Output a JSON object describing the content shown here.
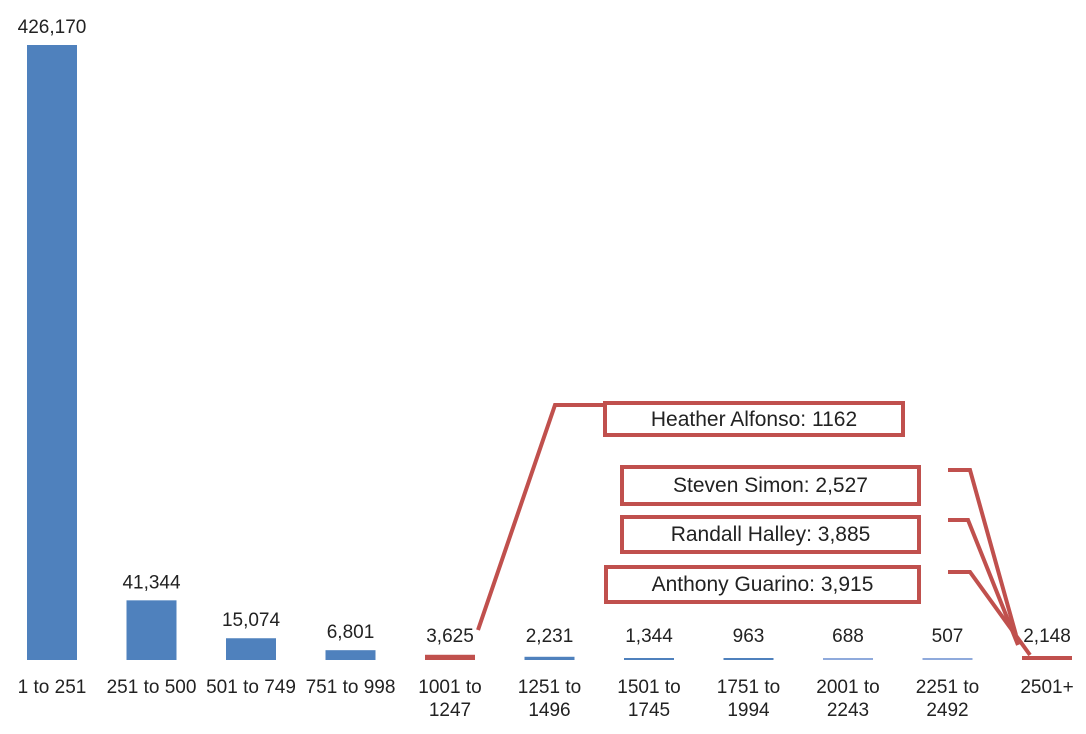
{
  "chart_data": {
    "type": "bar",
    "categories": [
      "1 to 251",
      "251 to 500",
      "501 to 749",
      "751 to 998",
      "1001 to 1247",
      "1251 to 1496",
      "1501 to 1745",
      "1751 to 1994",
      "2001 to 2243",
      "2251 to 2492",
      "2501+"
    ],
    "values": [
      426170,
      41344,
      15074,
      6801,
      3625,
      2231,
      1344,
      963,
      688,
      507,
      2148
    ],
    "value_labels": [
      "426,170",
      "41,344",
      "15,074",
      "6,801",
      "3,625",
      "2,231",
      "1,344",
      "963",
      "688",
      "507",
      "2,148"
    ],
    "colors": [
      "#4f81bd",
      "#4f81bd",
      "#4f81bd",
      "#4f81bd",
      "#c0504d",
      "#4f81bd",
      "#4f81bd",
      "#4f81bd",
      "#8faadc",
      "#8faadc",
      "#c0504d"
    ],
    "ylim": [
      0,
      426170
    ],
    "annotations": [
      "Heather Alfonso: 1162",
      "Steven Simon: 2,527",
      "Randall Halley: 3,885",
      "Anthony Guarino: 3,915"
    ]
  }
}
